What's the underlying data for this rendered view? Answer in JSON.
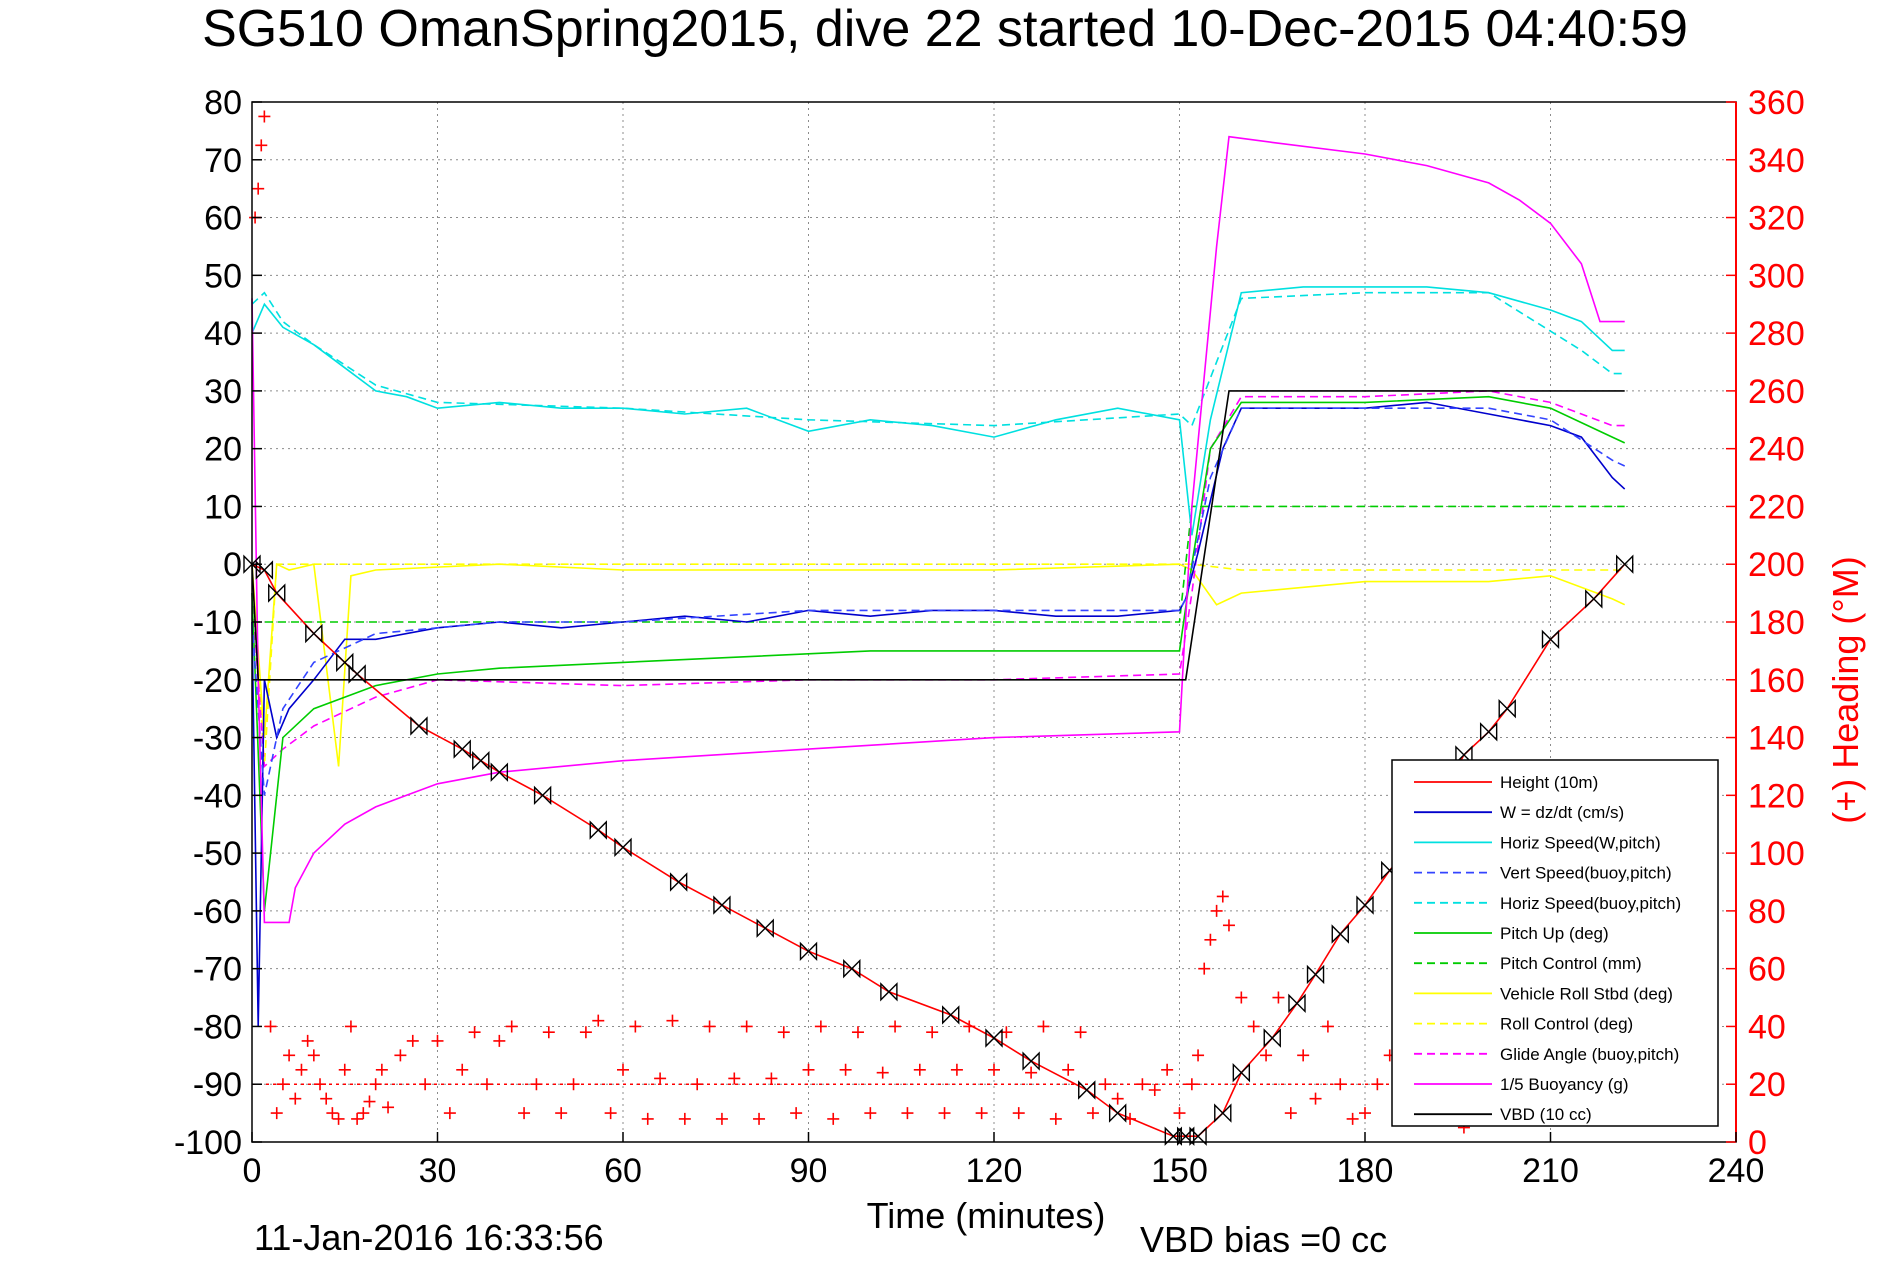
{
  "chart_data": {
    "type": "line",
    "title": "SG510 OmanSpring2015, dive 22 started 10-Dec-2015 04:40:59",
    "xlabel": "Time (minutes)",
    "ylabel_right": "(+) Heading (°M)",
    "footer_left": "11-Jan-2016 16:33:56",
    "footer_right": "VBD bias =0 cc",
    "xlim": [
      0,
      240
    ],
    "ylim_left": [
      -100,
      80
    ],
    "ylim_right": [
      0,
      360
    ],
    "xticks": [
      0,
      30,
      60,
      90,
      120,
      150,
      180,
      210,
      240
    ],
    "yticks_left": [
      80,
      70,
      60,
      50,
      40,
      30,
      20,
      10,
      0,
      -10,
      -20,
      -30,
      -40,
      -50,
      -60,
      -70,
      -80,
      -90,
      -100
    ],
    "yticks_right": [
      360,
      340,
      320,
      300,
      280,
      260,
      240,
      220,
      200,
      180,
      160,
      140,
      120,
      100,
      80,
      60,
      40,
      20,
      0
    ],
    "grid": true,
    "legend_position": "bottom-right",
    "colors": {
      "red": "#ff0000",
      "blue": "#0000cc",
      "cyan": "#00e0e0",
      "green": "#00cc00",
      "yellow": "#ffff00",
      "magenta": "#ff00ff",
      "black": "#000000"
    },
    "series": [
      {
        "name": "Height (10m)",
        "color": "#ff0000",
        "dash": "solid",
        "marker": "bowtie",
        "x": [
          0,
          2,
          4,
          10,
          15,
          17,
          27,
          34,
          37,
          40,
          47,
          56,
          60,
          69,
          76,
          83,
          90,
          97,
          103,
          113,
          120,
          126,
          135,
          140,
          149,
          151,
          153,
          157,
          160,
          165,
          169,
          172,
          176,
          180,
          184,
          188,
          192,
          196,
          200,
          203,
          210,
          217,
          222
        ],
        "y": [
          0,
          -1,
          -5,
          -12,
          -17,
          -19,
          -28,
          -32,
          -34,
          -36,
          -40,
          -46,
          -49,
          -55,
          -59,
          -63,
          -67,
          -70,
          -74,
          -78,
          -82,
          -86,
          -91,
          -95,
          -99,
          -99,
          -99,
          -95,
          -88,
          -82,
          -76,
          -71,
          -64,
          -59,
          -53,
          -48,
          -41,
          -33,
          -29,
          -25,
          -13,
          -6,
          0
        ]
      },
      {
        "name": "W = dz/dt (cm/s)",
        "color": "#0000cc",
        "dash": "solid",
        "x": [
          0,
          1,
          2,
          4,
          6,
          10,
          15,
          20,
          30,
          40,
          50,
          60,
          70,
          80,
          90,
          100,
          110,
          120,
          130,
          140,
          150,
          151,
          153,
          157,
          160,
          170,
          180,
          190,
          200,
          210,
          215,
          220,
          222
        ],
        "y": [
          -10,
          -80,
          -20,
          -30,
          -25,
          -20,
          -13,
          -13,
          -11,
          -10,
          -11,
          -10,
          -9,
          -10,
          -8,
          -9,
          -8,
          -8,
          -9,
          -9,
          -8,
          -6,
          2,
          20,
          27,
          27,
          27,
          28,
          26,
          24,
          22,
          15,
          13
        ]
      },
      {
        "name": "Horiz Speed(W,pitch)",
        "color": "#00e0e0",
        "dash": "solid",
        "x": [
          0,
          2,
          5,
          10,
          15,
          20,
          25,
          30,
          40,
          50,
          60,
          70,
          80,
          90,
          100,
          110,
          120,
          130,
          140,
          150,
          152,
          155,
          160,
          170,
          180,
          190,
          200,
          210,
          215,
          220,
          222
        ],
        "y": [
          40,
          45,
          41,
          38,
          34,
          30,
          29,
          27,
          28,
          27,
          27,
          26,
          27,
          23,
          25,
          24,
          22,
          25,
          27,
          25,
          5,
          25,
          47,
          48,
          48,
          48,
          47,
          44,
          42,
          37,
          37
        ]
      },
      {
        "name": "Vert Speed(buoy,pitch)",
        "color": "#3344ff",
        "dash": "dashed",
        "x": [
          0,
          2,
          5,
          10,
          20,
          40,
          60,
          90,
          120,
          150,
          151,
          155,
          160,
          180,
          200,
          210,
          220,
          222
        ],
        "y": [
          -10,
          -40,
          -25,
          -17,
          -12,
          -10,
          -10,
          -8,
          -8,
          -8,
          -6,
          15,
          27,
          27,
          27,
          25,
          18,
          17
        ]
      },
      {
        "name": "Horiz Speed(buoy,pitch)",
        "color": "#00e0e0",
        "dash": "dashed",
        "x": [
          0,
          2,
          5,
          10,
          20,
          30,
          60,
          90,
          120,
          150,
          152,
          160,
          180,
          200,
          215,
          220,
          222
        ],
        "y": [
          45,
          47,
          42,
          38,
          31,
          28,
          27,
          25,
          24,
          26,
          24,
          46,
          47,
          47,
          37,
          33,
          33
        ]
      },
      {
        "name": "Pitch Up (deg)",
        "color": "#00cc00",
        "dash": "solid",
        "x": [
          0,
          2,
          5,
          10,
          20,
          30,
          40,
          60,
          80,
          100,
          120,
          140,
          150,
          152,
          155,
          160,
          180,
          200,
          210,
          220,
          222
        ],
        "y": [
          -5,
          -60,
          -30,
          -25,
          -21,
          -19,
          -18,
          -17,
          -16,
          -15,
          -15,
          -15,
          -15,
          0,
          20,
          28,
          28,
          29,
          27,
          22,
          21
        ]
      },
      {
        "name": "Pitch Control (mm)",
        "color": "#00cc00",
        "dash": "dashed",
        "x": [
          0,
          5,
          30,
          60,
          90,
          120,
          150,
          152,
          155,
          160,
          222
        ],
        "y": [
          -10,
          -10,
          -10,
          -10,
          -10,
          -10,
          -10,
          10,
          10,
          10,
          10
        ]
      },
      {
        "name": "Vehicle Roll Stbd (deg)",
        "color": "#ffff00",
        "dash": "solid",
        "x": [
          0,
          2,
          4,
          6,
          10,
          14,
          16,
          20,
          40,
          60,
          90,
          120,
          150,
          152,
          156,
          160,
          180,
          200,
          210,
          220,
          222
        ],
        "y": [
          0,
          -30,
          0,
          -1,
          0,
          -35,
          -2,
          -1,
          0,
          -1,
          -1,
          -1,
          0,
          -1,
          -7,
          -5,
          -3,
          -3,
          -2,
          -6,
          -7
        ]
      },
      {
        "name": "Roll Control (deg)",
        "color": "#ffff00",
        "dash": "dashed",
        "x": [
          0,
          2,
          4,
          10,
          20,
          40,
          60,
          90,
          120,
          150,
          152,
          160,
          180,
          200,
          222
        ],
        "y": [
          0,
          -35,
          0,
          0,
          0,
          0,
          0,
          0,
          0,
          0,
          0,
          -1,
          -1,
          -1,
          -1
        ]
      },
      {
        "name": "Glide Angle (buoy,pitch)",
        "color": "#ff00ff",
        "dash": "dashed",
        "x": [
          0,
          2,
          5,
          10,
          20,
          30,
          60,
          90,
          120,
          150,
          152,
          155,
          160,
          180,
          200,
          210,
          220,
          222
        ],
        "y": [
          -5,
          -35,
          -32,
          -28,
          -23,
          -20,
          -21,
          -20,
          -20,
          -19,
          -5,
          20,
          29,
          29,
          30,
          28,
          24,
          24
        ]
      },
      {
        "name": "1/5 Buoyancy (g)",
        "color": "#ff00ff",
        "dash": "solid",
        "x": [
          0,
          1,
          2,
          6,
          7,
          10,
          15,
          20,
          25,
          30,
          40,
          60,
          90,
          120,
          150,
          152,
          156,
          158,
          165,
          180,
          190,
          200,
          205,
          210,
          215,
          218,
          222
        ],
        "y": [
          46,
          -20,
          -62,
          -62,
          -56,
          -50,
          -45,
          -42,
          -40,
          -38,
          -36,
          -34,
          -32,
          -30,
          -29,
          10,
          55,
          74,
          73,
          71,
          69,
          66,
          63,
          59,
          52,
          42,
          42
        ]
      },
      {
        "name": "VBD (10 cc)",
        "color": "#000000",
        "dash": "solid",
        "x": [
          0,
          1,
          2,
          150,
          151,
          158,
          222
        ],
        "y": [
          0,
          -20,
          -20,
          -20,
          -20,
          30,
          30
        ]
      }
    ],
    "heading_series": {
      "axis": "right",
      "color": "#ff0000",
      "marker": "+",
      "x": [
        0.5,
        1,
        1.5,
        2,
        3,
        4,
        5,
        6,
        7,
        8,
        9,
        10,
        11,
        12,
        13,
        14,
        15,
        16,
        17,
        18,
        19,
        20,
        21,
        22,
        24,
        26,
        28,
        30,
        32,
        34,
        36,
        38,
        40,
        42,
        44,
        46,
        48,
        50,
        52,
        54,
        56,
        58,
        60,
        62,
        64,
        66,
        68,
        70,
        72,
        74,
        76,
        78,
        80,
        82,
        84,
        86,
        88,
        90,
        92,
        94,
        96,
        98,
        100,
        102,
        104,
        106,
        108,
        110,
        112,
        114,
        116,
        118,
        120,
        122,
        124,
        126,
        128,
        130,
        132,
        134,
        136,
        138,
        140,
        142,
        144,
        146,
        148,
        150,
        152,
        153,
        154,
        155,
        156,
        157,
        158,
        160,
        162,
        164,
        166,
        168,
        170,
        172,
        174,
        176,
        178,
        180,
        182,
        184,
        186,
        188,
        190,
        192,
        194,
        196,
        198,
        200,
        202,
        204,
        206,
        208,
        210,
        212,
        214,
        216
      ],
      "y": [
        320,
        330,
        345,
        355,
        40,
        10,
        20,
        30,
        15,
        25,
        35,
        30,
        20,
        15,
        10,
        8,
        25,
        40,
        8,
        10,
        14,
        20,
        25,
        12,
        30,
        35,
        20,
        35,
        10,
        25,
        38,
        20,
        35,
        40,
        10,
        20,
        38,
        10,
        20,
        38,
        42,
        10,
        25,
        40,
        8,
        22,
        42,
        8,
        20,
        40,
        8,
        22,
        40,
        8,
        22,
        38,
        10,
        25,
        40,
        8,
        25,
        38,
        10,
        24,
        40,
        10,
        25,
        38,
        10,
        25,
        40,
        10,
        25,
        38,
        10,
        24,
        40,
        8,
        25,
        38,
        10,
        20,
        15,
        8,
        20,
        18,
        25,
        10,
        20,
        30,
        60,
        70,
        80,
        85,
        75,
        50,
        40,
        30,
        50,
        10,
        30,
        15,
        40,
        20,
        8,
        10,
        20,
        30,
        45,
        10,
        30,
        15,
        20,
        5,
        20,
        15,
        10,
        8,
        20,
        15,
        10,
        8,
        12,
        10
      ]
    },
    "heading_reference": {
      "axis": "right",
      "value": 20,
      "color": "#ff0000",
      "style": "dotted"
    }
  }
}
